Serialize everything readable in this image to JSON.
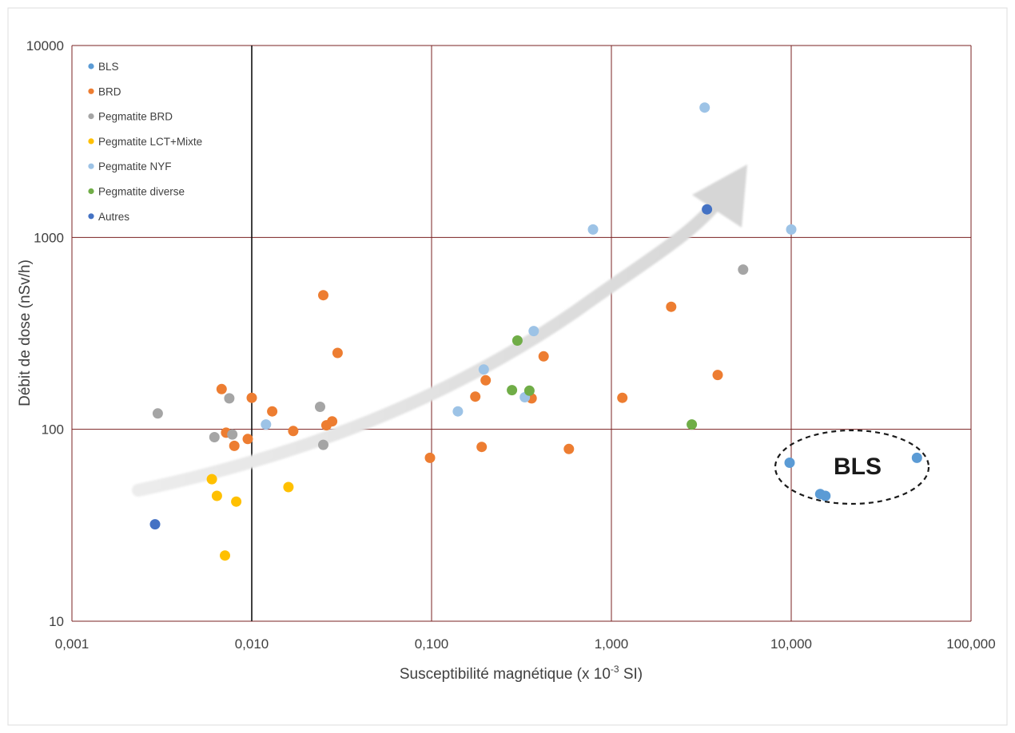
{
  "chart_data": {
    "type": "scatter",
    "xlabel_prefix": "Susceptibilité magnétique (x 10",
    "xlabel_exp": "-3",
    "xlabel_suffix": " SI)",
    "ylabel": "Débit de dose (nSv/h)",
    "x_scale": "log",
    "y_scale": "log",
    "xlim": [
      0.001,
      100
    ],
    "ylim": [
      10,
      10000
    ],
    "x_ticks": [
      {
        "value": 0.001,
        "label": "0,001"
      },
      {
        "value": 0.01,
        "label": "0,010"
      },
      {
        "value": 0.1,
        "label": "0,100"
      },
      {
        "value": 1,
        "label": "1,000"
      },
      {
        "value": 10,
        "label": "10,000"
      },
      {
        "value": 100,
        "label": "100,000"
      }
    ],
    "y_ticks": [
      {
        "value": 10,
        "label": "10"
      },
      {
        "value": 100,
        "label": "100"
      },
      {
        "value": 1000,
        "label": "1000"
      },
      {
        "value": 10000,
        "label": "10000"
      }
    ],
    "grid": true,
    "grid_color": "#7a2020",
    "highlight_gridline_x": 0.01,
    "legend_position": "top-left",
    "series": [
      {
        "name": "BLS",
        "color": "#5b9bd5",
        "points": [
          [
            9.8,
            67
          ],
          [
            14.5,
            46
          ],
          [
            15.5,
            45
          ],
          [
            50,
            71
          ]
        ]
      },
      {
        "name": "BRD",
        "color": "#ed7d31",
        "points": [
          [
            0.0068,
            162
          ],
          [
            0.0072,
            96
          ],
          [
            0.008,
            82
          ],
          [
            0.0095,
            89
          ],
          [
            0.01,
            146
          ],
          [
            0.013,
            124
          ],
          [
            0.017,
            98
          ],
          [
            0.025,
            500
          ],
          [
            0.026,
            105
          ],
          [
            0.028,
            110
          ],
          [
            0.03,
            250
          ],
          [
            0.098,
            71
          ],
          [
            0.175,
            148
          ],
          [
            0.19,
            81
          ],
          [
            0.2,
            180
          ],
          [
            0.36,
            145
          ],
          [
            0.42,
            240
          ],
          [
            0.58,
            79
          ],
          [
            1.15,
            146
          ],
          [
            2.15,
            435
          ],
          [
            3.9,
            192
          ]
        ]
      },
      {
        "name": "Pegmatite BRD",
        "color": "#a5a5a5",
        "points": [
          [
            0.003,
            121
          ],
          [
            0.0062,
            91
          ],
          [
            0.0075,
            145
          ],
          [
            0.0078,
            94
          ],
          [
            0.024,
            131
          ],
          [
            0.025,
            83
          ],
          [
            5.4,
            680
          ]
        ]
      },
      {
        "name": "Pegmatite LCT+Mixte",
        "color": "#ffc000",
        "points": [
          [
            0.006,
            55
          ],
          [
            0.0064,
            45
          ],
          [
            0.0071,
            22
          ],
          [
            0.0082,
            42
          ],
          [
            0.016,
            50
          ]
        ]
      },
      {
        "name": "Pegmatite NYF",
        "color": "#9dc3e6",
        "points": [
          [
            0.012,
            106
          ],
          [
            0.14,
            124
          ],
          [
            0.195,
            205
          ],
          [
            0.33,
            147
          ],
          [
            0.37,
            325
          ],
          [
            0.79,
            1100
          ],
          [
            3.3,
            4750
          ],
          [
            10,
            1100
          ]
        ]
      },
      {
        "name": "Pegmatite diverse",
        "color": "#70ad47",
        "points": [
          [
            0.28,
            160
          ],
          [
            0.3,
            290
          ],
          [
            0.35,
            159
          ],
          [
            2.8,
            106
          ]
        ]
      },
      {
        "name": "Autres",
        "color": "#4472c4",
        "points": [
          [
            0.0029,
            32
          ],
          [
            3.4,
            1400
          ]
        ]
      }
    ],
    "annotations": [
      {
        "type": "trend-arrow",
        "description_color": "#d9d9d9"
      },
      {
        "type": "ellipse-label",
        "text": "BLS",
        "style": "dashed"
      }
    ]
  }
}
